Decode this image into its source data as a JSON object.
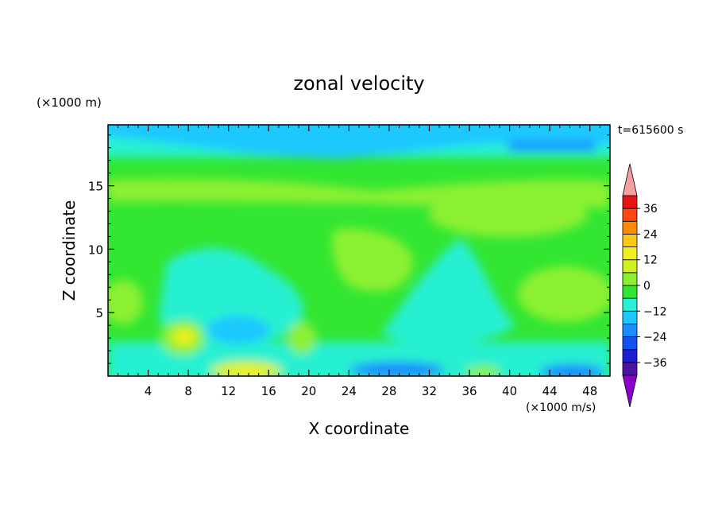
{
  "chart_data": {
    "type": "heatmap",
    "title": "zonal velocity",
    "xlabel": "X coordinate",
    "ylabel": "Z coordinate",
    "x_units": "(×1000 m/s)",
    "y_units": "(×1000 m)",
    "time_label": "t=615600 s",
    "xlim": [
      0,
      50
    ],
    "ylim": [
      0,
      19.8
    ],
    "x_ticks": [
      4,
      8,
      12,
      16,
      20,
      24,
      28,
      32,
      36,
      40,
      44,
      48
    ],
    "y_ticks": [
      5,
      10,
      15
    ],
    "colorbar": {
      "levels": [
        -42,
        -36,
        -30,
        -24,
        -18,
        -12,
        -6,
        0,
        6,
        12,
        18,
        24,
        30,
        36,
        42
      ],
      "tick_values": [
        -36,
        -24,
        -12,
        0,
        12,
        24,
        36
      ],
      "tick_labels": [
        "−36",
        "−24",
        "−12",
        "0",
        "12",
        "24",
        "36"
      ],
      "colors": [
        "#8b00c8",
        "#4a14a0",
        "#1e1ed2",
        "#1450f0",
        "#1e8cff",
        "#1ec8ff",
        "#28f0d2",
        "#32e632",
        "#8cf032",
        "#d2f01e",
        "#f0f01e",
        "#ffc814",
        "#ff8c00",
        "#ff4614",
        "#e61414",
        "#f4a0a0"
      ]
    }
  }
}
